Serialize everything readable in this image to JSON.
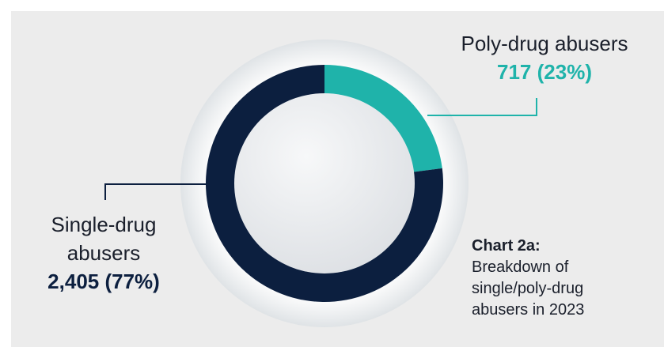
{
  "chart_data": {
    "type": "donut",
    "title": "Chart 2a:",
    "subtitle": "Breakdown of single/poly-drug abusers in 2023",
    "categories": [
      "Poly-drug abusers",
      "Single-drug abusers"
    ],
    "values": [
      717,
      2405
    ],
    "value_labels": [
      "717 (23%)",
      "2,405 (77%)"
    ],
    "colors": [
      "#1fb3aa",
      "#0c1f3f"
    ]
  }
}
